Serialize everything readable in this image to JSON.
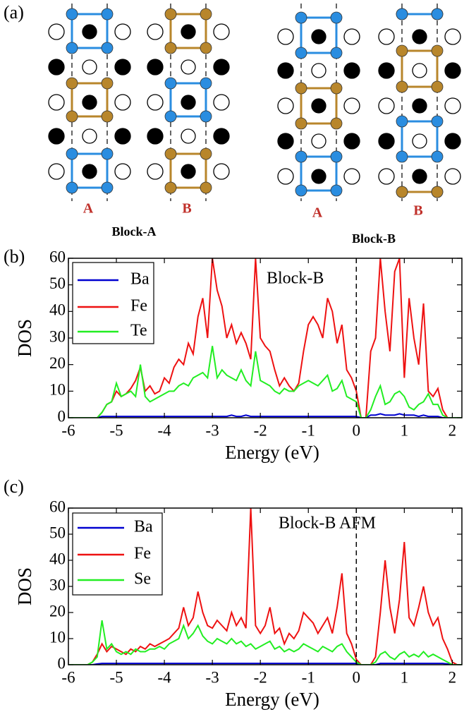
{
  "figure": {
    "panels": [
      "(a)",
      "(b)",
      "(c)"
    ],
    "diagram": {
      "block_a": {
        "title": "Block-A",
        "columns": [
          "A",
          "B"
        ]
      },
      "block_b": {
        "title": "Block-B",
        "columns": [
          "A",
          "B"
        ]
      }
    }
  },
  "chart_data": [
    {
      "type": "line",
      "annotation": "Block-B",
      "xlabel": "Energy (eV)",
      "ylabel": "DOS",
      "x": [
        -6.0,
        -5.9,
        -5.8,
        -5.7,
        -5.6,
        -5.5,
        -5.4,
        -5.3,
        -5.2,
        -5.1,
        -5.0,
        -4.9,
        -4.8,
        -4.7,
        -4.6,
        -4.5,
        -4.4,
        -4.3,
        -4.2,
        -4.1,
        -4.0,
        -3.9,
        -3.8,
        -3.7,
        -3.6,
        -3.5,
        -3.4,
        -3.3,
        -3.2,
        -3.1,
        -3.0,
        -2.9,
        -2.8,
        -2.7,
        -2.6,
        -2.5,
        -2.4,
        -2.3,
        -2.2,
        -2.1,
        -2.0,
        -1.9,
        -1.8,
        -1.7,
        -1.6,
        -1.5,
        -1.4,
        -1.3,
        -1.2,
        -1.1,
        -1.0,
        -0.9,
        -0.8,
        -0.7,
        -0.6,
        -0.5,
        -0.4,
        -0.3,
        -0.2,
        -0.1,
        0.0,
        0.1,
        0.2,
        0.3,
        0.4,
        0.5,
        0.6,
        0.7,
        0.8,
        0.9,
        1.0,
        1.1,
        1.2,
        1.3,
        1.4,
        1.5,
        1.6,
        1.7,
        1.8,
        1.9,
        2.0,
        2.1,
        2.2
      ],
      "series": [
        {
          "name": "Ba",
          "color": "#0000d0",
          "values": [
            0,
            0,
            0,
            0,
            0,
            0,
            0,
            0.5,
            0.5,
            0.5,
            0.5,
            0.5,
            0.5,
            0.5,
            0.5,
            0.5,
            0.5,
            0.5,
            0.5,
            0.5,
            0.5,
            0.5,
            0.5,
            0.5,
            0.5,
            0.5,
            0.5,
            0.5,
            0.5,
            0.5,
            0.5,
            0.5,
            0.5,
            0.5,
            1,
            0.5,
            0.5,
            1,
            0.5,
            0.5,
            0.5,
            0.5,
            0.5,
            0.5,
            0.5,
            0.5,
            0.5,
            0.5,
            0.5,
            0.5,
            0.5,
            0.5,
            0.5,
            0.5,
            0.5,
            0.5,
            0.5,
            0.5,
            0.5,
            0.5,
            0.5,
            0,
            0,
            1,
            1,
            1.5,
            1,
            1,
            1,
            1.5,
            1,
            1,
            1,
            0.5,
            1,
            0.5,
            0.5,
            0.5,
            0,
            0,
            0,
            0,
            0
          ]
        },
        {
          "name": "Fe",
          "color": "#ee1111",
          "values": [
            0,
            0,
            0,
            0,
            0,
            0,
            0,
            2,
            5,
            6,
            10,
            8,
            9,
            11,
            14,
            19,
            10,
            12,
            9,
            10,
            15,
            13,
            19,
            22,
            20,
            28,
            24,
            38,
            45,
            30,
            60,
            48,
            42,
            30,
            35,
            28,
            32,
            28,
            22,
            60,
            30,
            27,
            25,
            18,
            12,
            15,
            12,
            10,
            13,
            25,
            35,
            38,
            35,
            30,
            45,
            40,
            28,
            35,
            18,
            15,
            10,
            0,
            0,
            25,
            30,
            60,
            40,
            25,
            55,
            60,
            15,
            45,
            30,
            20,
            43,
            10,
            8,
            11,
            3,
            0,
            0,
            0,
            0
          ]
        },
        {
          "name": "Te",
          "color": "#22ee22",
          "values": [
            0,
            0,
            0,
            0,
            0,
            0,
            0,
            2,
            5,
            6,
            13,
            8,
            9,
            10,
            8,
            20,
            8,
            6,
            7,
            8,
            9,
            10,
            10,
            12,
            13,
            12,
            15,
            16,
            17,
            15,
            27,
            15,
            18,
            16,
            15,
            14,
            18,
            14,
            12,
            25,
            14,
            13,
            12,
            10,
            9,
            11,
            10,
            10,
            12,
            13,
            14,
            13,
            12,
            14,
            16,
            10,
            11,
            14,
            8,
            7,
            6,
            0,
            0,
            3,
            8,
            12,
            5,
            6,
            9,
            10,
            8,
            4,
            3,
            5,
            6,
            9,
            5,
            5,
            1,
            0,
            0,
            0,
            0
          ]
        }
      ],
      "xlim": [
        -6,
        2.2
      ],
      "ylim": [
        0,
        60
      ],
      "xticks": [
        -6,
        -5,
        -4,
        -3,
        -2,
        -1,
        0,
        1,
        2
      ],
      "yticks": [
        0,
        10,
        20,
        30,
        40,
        50,
        60
      ],
      "reference_line_x": 0,
      "legend": "upper left"
    },
    {
      "type": "line",
      "annotation": "Block-B AFM",
      "xlabel": "Energy (eV)",
      "ylabel": "DOS",
      "x": [
        -6.0,
        -5.9,
        -5.8,
        -5.7,
        -5.6,
        -5.5,
        -5.4,
        -5.3,
        -5.2,
        -5.1,
        -5.0,
        -4.9,
        -4.8,
        -4.7,
        -4.6,
        -4.5,
        -4.4,
        -4.3,
        -4.2,
        -4.1,
        -4.0,
        -3.9,
        -3.8,
        -3.7,
        -3.6,
        -3.5,
        -3.4,
        -3.3,
        -3.2,
        -3.1,
        -3.0,
        -2.9,
        -2.8,
        -2.7,
        -2.6,
        -2.5,
        -2.4,
        -2.3,
        -2.2,
        -2.1,
        -2.0,
        -1.9,
        -1.8,
        -1.7,
        -1.6,
        -1.5,
        -1.4,
        -1.3,
        -1.2,
        -1.1,
        -1.0,
        -0.9,
        -0.8,
        -0.7,
        -0.6,
        -0.5,
        -0.4,
        -0.3,
        -0.2,
        -0.1,
        0.0,
        0.1,
        0.2,
        0.3,
        0.4,
        0.5,
        0.6,
        0.7,
        0.8,
        0.9,
        1.0,
        1.1,
        1.2,
        1.3,
        1.4,
        1.5,
        1.6,
        1.7,
        1.8,
        1.9,
        2.0,
        2.1,
        2.2
      ],
      "series": [
        {
          "name": "Ba",
          "color": "#0000d0",
          "values": [
            0,
            0,
            0,
            0,
            0,
            0,
            0.3,
            0.5,
            0.5,
            0.5,
            0.5,
            0.5,
            0.5,
            0.5,
            0.5,
            0.5,
            0.5,
            0.5,
            0.5,
            0.5,
            0.5,
            0.5,
            0.5,
            0.5,
            0.5,
            0.5,
            0.5,
            0.5,
            0.5,
            0.5,
            0.5,
            0.5,
            0.5,
            0.5,
            0.5,
            0.5,
            0.5,
            0.5,
            0.5,
            0.5,
            0.5,
            0.5,
            0.5,
            0.5,
            0.5,
            0.5,
            0.5,
            0.5,
            0.5,
            0.5,
            0.5,
            0.5,
            0.5,
            0.5,
            0.5,
            0.5,
            0.5,
            0.5,
            0.5,
            0.5,
            0.5,
            0,
            0,
            0,
            0,
            0.5,
            0.5,
            0.5,
            0.5,
            0.5,
            0.5,
            0.5,
            0.5,
            0.5,
            0.5,
            0.5,
            0.5,
            0.5,
            0.5,
            0.3,
            0,
            0,
            0
          ]
        },
        {
          "name": "Fe",
          "color": "#ee1111",
          "values": [
            0,
            0,
            0,
            0,
            0,
            1,
            4,
            8,
            5,
            7,
            6,
            5,
            4,
            6,
            5,
            7,
            6,
            8,
            7,
            8,
            9,
            10,
            12,
            14,
            22,
            15,
            18,
            28,
            20,
            15,
            14,
            17,
            15,
            13,
            20,
            15,
            18,
            14,
            60,
            15,
            12,
            15,
            22,
            12,
            14,
            8,
            12,
            10,
            13,
            20,
            18,
            16,
            12,
            15,
            18,
            12,
            22,
            35,
            12,
            8,
            2,
            0,
            0,
            0,
            3,
            20,
            40,
            22,
            12,
            25,
            47,
            18,
            15,
            22,
            30,
            20,
            15,
            18,
            10,
            6,
            1,
            0,
            0
          ]
        },
        {
          "name": "Se",
          "color": "#22ee22",
          "values": [
            0,
            0,
            0,
            0,
            0,
            1,
            3,
            17,
            6,
            8,
            5,
            4,
            5,
            4,
            6,
            5,
            5,
            6,
            6,
            7,
            6,
            8,
            9,
            10,
            15,
            10,
            12,
            15,
            11,
            9,
            8,
            10,
            9,
            8,
            10,
            8,
            9,
            7,
            8,
            6,
            7,
            8,
            9,
            6,
            7,
            5,
            6,
            5,
            6,
            8,
            7,
            6,
            5,
            7,
            6,
            5,
            7,
            8,
            5,
            3,
            1,
            0,
            0,
            0,
            1,
            4,
            5,
            3,
            2,
            4,
            5,
            3,
            4,
            3,
            5,
            3,
            4,
            3,
            2,
            1,
            0,
            0,
            0
          ]
        }
      ],
      "xlim": [
        -6,
        2.2
      ],
      "ylim": [
        0,
        60
      ],
      "xticks": [
        -6,
        -5,
        -4,
        -3,
        -2,
        -1,
        0,
        1,
        2
      ],
      "yticks": [
        0,
        10,
        20,
        30,
        40,
        50,
        60
      ],
      "reference_line_x": 0,
      "legend": "upper left"
    }
  ]
}
